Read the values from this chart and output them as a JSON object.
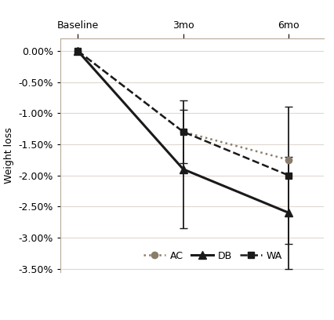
{
  "x_positions": [
    0,
    3,
    6
  ],
  "x_labels": [
    "Baseline",
    "3mo",
    "6mo"
  ],
  "series": {
    "AC": {
      "values": [
        0.0,
        -0.013,
        -0.0175
      ],
      "errors": [
        null,
        null,
        null
      ],
      "color": "#8B7D6B",
      "linestyle": "dotted",
      "marker": "o",
      "marker_size": 6,
      "linewidth": 1.8,
      "label": "AC"
    },
    "DB": {
      "values": [
        0.0,
        -0.019,
        -0.026
      ],
      "errors": [
        null,
        0.0095,
        0.009
      ],
      "color": "#1A1A1A",
      "linestyle": "solid",
      "marker": "^",
      "marker_size": 7,
      "linewidth": 2.2,
      "label": "DB"
    },
    "WA": {
      "values": [
        0.0,
        -0.013,
        -0.02
      ],
      "errors": [
        null,
        0.005,
        0.011
      ],
      "color": "#1A1A1A",
      "linestyle": "dashed",
      "marker": "s",
      "marker_size": 6,
      "linewidth": 1.8,
      "label": "WA"
    }
  },
  "ylabel": "Weight loss",
  "ylim": [
    -0.0355,
    0.002
  ],
  "yticks": [
    0.0,
    -0.005,
    -0.01,
    -0.015,
    -0.02,
    -0.025,
    -0.03,
    -0.035
  ],
  "xlim": [
    -0.5,
    7.0
  ],
  "background_color": "#FFFFFF",
  "spine_color": "#B8A898",
  "grid_color": "#E0D8D0",
  "axis_fontsize": 9,
  "tick_fontsize": 9
}
